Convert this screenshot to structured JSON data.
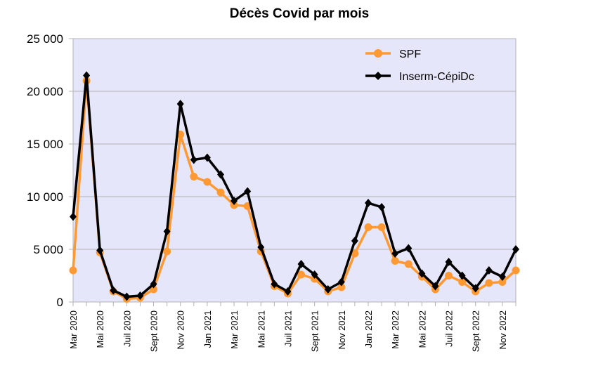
{
  "chart_data": {
    "type": "line",
    "title": "Décès Covid par mois",
    "xlabel": "",
    "ylabel": "",
    "ylim": [
      0,
      25000
    ],
    "yticks": [
      0,
      5000,
      10000,
      15000,
      20000,
      25000
    ],
    "ytick_labels": [
      "0",
      "5 000",
      "10 000",
      "15 000",
      "20 000",
      "25 000"
    ],
    "categories": [
      "Mar 2020",
      "Apr 2020",
      "Mai 2020",
      "Jun 2020",
      "Juil 2020",
      "Aug 2020",
      "Sept 2020",
      "Oct 2020",
      "Nov 2020",
      "Dec 2020",
      "Jan 2021",
      "Feb 2021",
      "Mar 2021",
      "Apr 2021",
      "Mai 2021",
      "Jun 2021",
      "Juil 2021",
      "Aug 2021",
      "Sept 2021",
      "Oct 2021",
      "Nov 2021",
      "Dec 2021",
      "Jan 2022",
      "Feb 2022",
      "Mar 2022",
      "Apr 2022",
      "Mai 2022",
      "Jun 2022",
      "Juil 2022",
      "Aug 2022",
      "Sept 2022",
      "Oct 2022",
      "Nov 2022",
      "Dec 2022"
    ],
    "xtick_labels": [
      "Mar 2020",
      "Mai 2020",
      "Juil 2020",
      "Sept 2020",
      "Nov 2020",
      "Jan 2021",
      "Mar 2021",
      "Mai 2021",
      "Juil 2021",
      "Sept 2021",
      "Nov 2021",
      "Jan 2022",
      "Mar 2022",
      "Mai 2022",
      "Juil 2022",
      "Sept 2022",
      "Nov 2022"
    ],
    "series": [
      {
        "name": "SPF",
        "color": "#ff9933",
        "marker": "circle",
        "values": [
          3000,
          21000,
          4700,
          1000,
          300,
          400,
          1200,
          4800,
          15900,
          11900,
          11400,
          10400,
          9200,
          9100,
          4800,
          1500,
          800,
          2600,
          2200,
          1000,
          1400,
          4600,
          7100,
          7100,
          3900,
          3600,
          2400,
          1200,
          2500,
          1900,
          1000,
          1800,
          1900,
          3000
        ]
      },
      {
        "name": "Inserm-CépiDc",
        "color": "#000000",
        "marker": "diamond",
        "values": [
          8100,
          21500,
          4900,
          1100,
          500,
          600,
          1700,
          6700,
          18800,
          13500,
          13700,
          12100,
          9600,
          10500,
          5200,
          1700,
          1000,
          3600,
          2600,
          1200,
          1900,
          5800,
          9400,
          9000,
          4600,
          5100,
          2700,
          1500,
          3800,
          2500,
          1300,
          3000,
          2400,
          5000
        ]
      }
    ],
    "legend_position": "top-right",
    "grid": true,
    "plot_background": "#e6e6fa"
  }
}
